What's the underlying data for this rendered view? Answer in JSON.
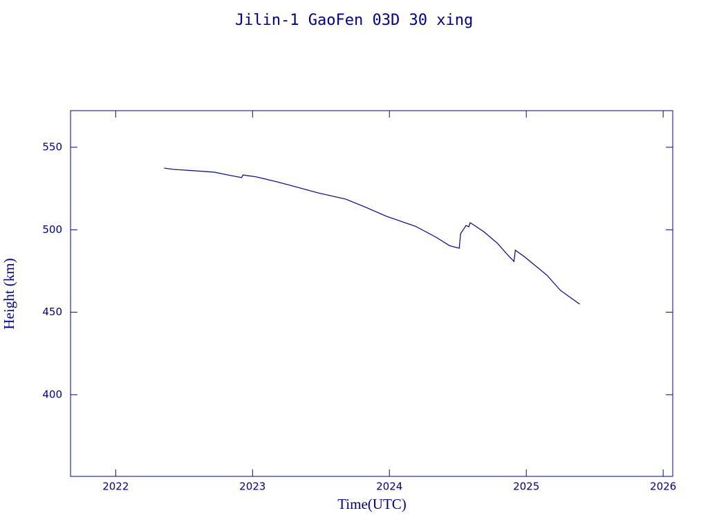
{
  "chart_data": {
    "type": "line",
    "title": "Jilin-1 GaoFen 03D 30 xing",
    "x_label": "Time(UTC)",
    "y_label": "Height (km)",
    "color": "#00008b",
    "xlim": [
      2021.67,
      2026.07
    ],
    "ylim": [
      350.5,
      572.2
    ],
    "xticks": [
      2022,
      2023,
      2024,
      2025,
      2026
    ],
    "yticks": [
      400,
      450,
      500,
      550
    ],
    "series": [
      {
        "name": "Height",
        "color": "#00008b",
        "x": [
          2022.354,
          2022.42,
          2022.57,
          2022.72,
          2022.82,
          2022.92,
          2022.93,
          2023.03,
          2023.18,
          2023.33,
          2023.48,
          2023.68,
          2023.83,
          2023.98,
          2024.19,
          2024.34,
          2024.44,
          2024.51,
          2024.52,
          2024.54,
          2024.56,
          2024.58,
          2024.59,
          2024.69,
          2024.79,
          2024.87,
          2024.91,
          2024.92,
          2024.99,
          2025.15,
          2025.25,
          2025.39
        ],
        "values": [
          537.4,
          536.6,
          535.8,
          534.9,
          533.2,
          531.6,
          533.2,
          532.0,
          529.0,
          525.7,
          522.3,
          518.6,
          513.5,
          508.1,
          502.1,
          495.5,
          490.3,
          488.8,
          497.6,
          500.1,
          502.6,
          501.8,
          504.3,
          498.8,
          491.7,
          484.2,
          480.8,
          487.6,
          483.4,
          472.5,
          463.2,
          454.9
        ]
      }
    ]
  }
}
